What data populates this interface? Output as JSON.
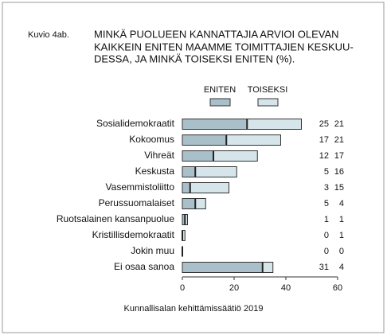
{
  "chart_data": {
    "type": "stacked-barh",
    "figure_label": "Kuvio 4ab.",
    "title_lines": [
      "MINKÄ PUOLUEEN KANNATTAJIA ARVIOI OLEVAN",
      "KAIKKEIN ENITEN MAAMME TOIMITTAJIEN KESKUU-",
      "DESSA, JA MINKÄ TOISEKSI ENITEN (%)."
    ],
    "categories": [
      "Sosialidemokraatit",
      "Kokoomus",
      "Vihreät",
      "Keskusta",
      "Vasemmistoliitto",
      "Perussuomalaiset",
      "Ruotsalainen kansanpuolue",
      "Kristillisdemokraatit",
      "Jokin muu",
      "Ei osaa sanoa"
    ],
    "series": [
      {
        "name": "ENITEN",
        "color": "#a9bfc9",
        "values": [
          25,
          17,
          12,
          5,
          3,
          5,
          1,
          0,
          0,
          31
        ]
      },
      {
        "name": "TOISEKSI",
        "color": "#d5e5ea",
        "values": [
          21,
          21,
          17,
          16,
          15,
          4,
          1,
          1,
          0,
          4
        ]
      }
    ],
    "xlim": [
      0,
      60
    ],
    "xticks": [
      0,
      20,
      40,
      60
    ],
    "source": "Kunnallisalan kehittämissäätiö 2019"
  }
}
